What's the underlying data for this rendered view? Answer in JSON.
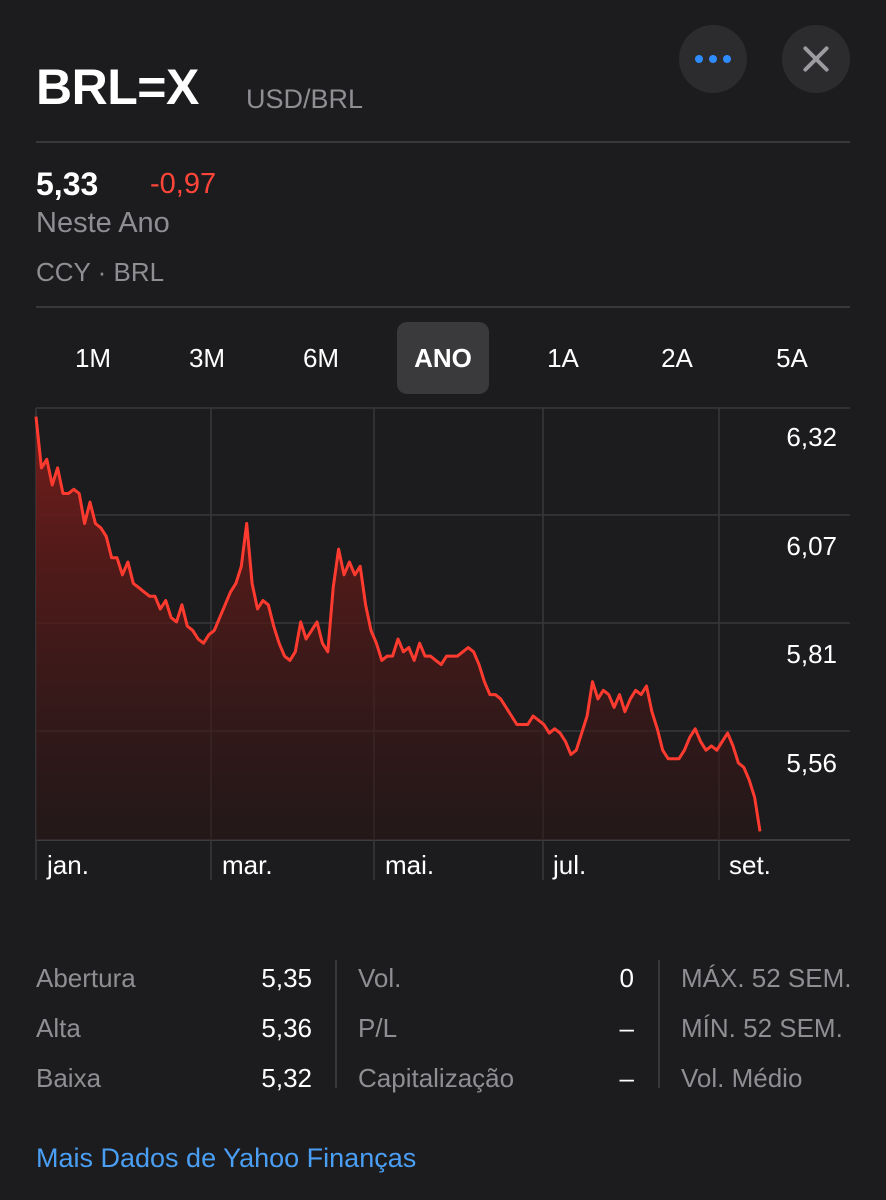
{
  "header": {
    "symbol": "BRL=X",
    "name": "USD/BRL",
    "more_icon": "ellipsis-icon",
    "close_icon": "close-icon"
  },
  "quote": {
    "price": "5,33",
    "change": "-0,97",
    "period": "Neste Ano",
    "currency": "CCY · BRL"
  },
  "tabs": [
    {
      "label": "1M",
      "active": false
    },
    {
      "label": "3M",
      "active": false
    },
    {
      "label": "6M",
      "active": false
    },
    {
      "label": "ANO",
      "active": true
    },
    {
      "label": "1A",
      "active": false
    },
    {
      "label": "2A",
      "active": false
    },
    {
      "label": "5A",
      "active": false
    }
  ],
  "chart_data": {
    "type": "area",
    "x_tick_labels": [
      "jan.",
      "mar.",
      "mai.",
      "jul.",
      "set."
    ],
    "y_tick_labels": [
      "6,32",
      "6,07",
      "5,81",
      "5,56"
    ],
    "y_ticks": [
      6.32,
      6.07,
      5.81,
      5.56
    ],
    "ylim": [
      5.31,
      6.32
    ],
    "grid": true,
    "series_color": "#ff3b30",
    "values": [
      6.3,
      6.18,
      6.2,
      6.14,
      6.18,
      6.12,
      6.12,
      6.13,
      6.12,
      6.05,
      6.1,
      6.05,
      6.04,
      6.02,
      5.97,
      5.97,
      5.93,
      5.96,
      5.91,
      5.9,
      5.89,
      5.88,
      5.88,
      5.85,
      5.87,
      5.83,
      5.82,
      5.86,
      5.81,
      5.8,
      5.78,
      5.77,
      5.79,
      5.8,
      5.83,
      5.86,
      5.89,
      5.91,
      5.95,
      6.05,
      5.91,
      5.85,
      5.87,
      5.86,
      5.81,
      5.77,
      5.74,
      5.73,
      5.75,
      5.82,
      5.78,
      5.8,
      5.82,
      5.77,
      5.75,
      5.9,
      5.99,
      5.93,
      5.96,
      5.93,
      5.95,
      5.86,
      5.8,
      5.77,
      5.73,
      5.74,
      5.74,
      5.78,
      5.75,
      5.76,
      5.73,
      5.77,
      5.74,
      5.74,
      5.73,
      5.72,
      5.74,
      5.74,
      5.74,
      5.75,
      5.76,
      5.75,
      5.72,
      5.68,
      5.65,
      5.65,
      5.64,
      5.62,
      5.6,
      5.58,
      5.58,
      5.58,
      5.6,
      5.59,
      5.58,
      5.56,
      5.57,
      5.56,
      5.54,
      5.51,
      5.52,
      5.56,
      5.6,
      5.68,
      5.64,
      5.66,
      5.65,
      5.62,
      5.65,
      5.61,
      5.64,
      5.66,
      5.65,
      5.67,
      5.61,
      5.57,
      5.52,
      5.5,
      5.5,
      5.5,
      5.52,
      5.55,
      5.57,
      5.54,
      5.52,
      5.53,
      5.52,
      5.54,
      5.56,
      5.53,
      5.49,
      5.48,
      5.45,
      5.41,
      5.33
    ]
  },
  "stats": {
    "col1": [
      {
        "label": "Abertura",
        "value": "5,35"
      },
      {
        "label": "Alta",
        "value": "5,36"
      },
      {
        "label": "Baixa",
        "value": "5,32"
      }
    ],
    "col2": [
      {
        "label": "Vol.",
        "value": "0"
      },
      {
        "label": "P/L",
        "value": "–"
      },
      {
        "label": "Capitalização",
        "value": "–"
      }
    ],
    "col3": [
      {
        "label": "MÁX. 52 SEM."
      },
      {
        "label": "MÍN. 52 SEM."
      },
      {
        "label": "Vol. Médio"
      }
    ]
  },
  "footer": {
    "link": "Mais Dados de Yahoo Finanças"
  }
}
